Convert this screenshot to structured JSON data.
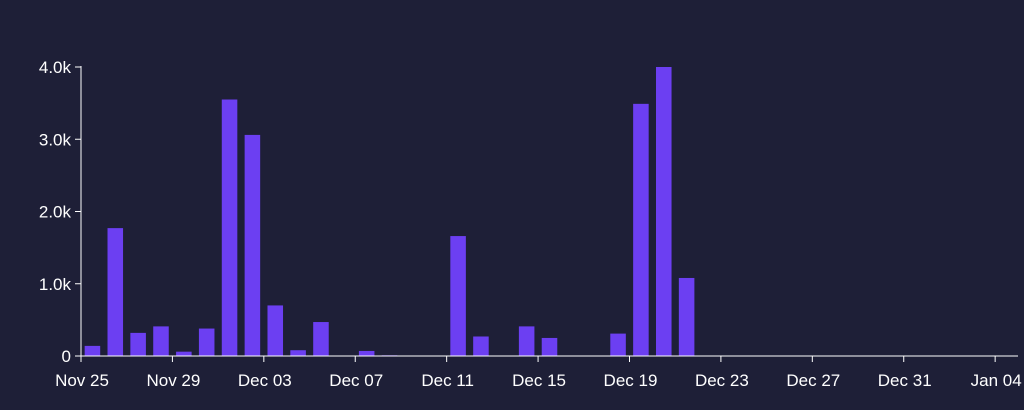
{
  "chart_data": {
    "type": "bar",
    "title": "",
    "xlabel": "",
    "ylabel": "",
    "ylim": [
      0,
      4000
    ],
    "grid": false,
    "y_ticks": [
      {
        "value": 0,
        "label": "0"
      },
      {
        "value": 1000,
        "label": "1.0k"
      },
      {
        "value": 2000,
        "label": "2.0k"
      },
      {
        "value": 3000,
        "label": "3.0k"
      },
      {
        "value": 4000,
        "label": "4.0k"
      }
    ],
    "x_ticks": [
      {
        "date": "2023-11-25",
        "label": "Nov 25"
      },
      {
        "date": "2023-11-29",
        "label": "Nov 29"
      },
      {
        "date": "2023-12-03",
        "label": "Dec 03"
      },
      {
        "date": "2023-12-07",
        "label": "Dec 07"
      },
      {
        "date": "2023-12-11",
        "label": "Dec 11"
      },
      {
        "date": "2023-12-15",
        "label": "Dec 15"
      },
      {
        "date": "2023-12-19",
        "label": "Dec 19"
      },
      {
        "date": "2023-12-23",
        "label": "Dec 23"
      },
      {
        "date": "2023-12-27",
        "label": "Dec 27"
      },
      {
        "date": "2023-12-31",
        "label": "Dec 31"
      },
      {
        "date": "2024-01-04",
        "label": "Jan 04"
      }
    ],
    "x_range": [
      "2023-11-25",
      "2024-01-05"
    ],
    "bar_color": "#6c3ff2",
    "axis_color": "#ffffff",
    "background": "#1e1f37",
    "series": [
      {
        "values": [
          {
            "date": "2023-11-25",
            "value": 140
          },
          {
            "date": "2023-11-26",
            "value": 1770
          },
          {
            "date": "2023-11-27",
            "value": 320
          },
          {
            "date": "2023-11-28",
            "value": 410
          },
          {
            "date": "2023-11-29",
            "value": 60
          },
          {
            "date": "2023-11-30",
            "value": 380
          },
          {
            "date": "2023-12-01",
            "value": 3550
          },
          {
            "date": "2023-12-02",
            "value": 3060
          },
          {
            "date": "2023-12-03",
            "value": 700
          },
          {
            "date": "2023-12-04",
            "value": 80
          },
          {
            "date": "2023-12-05",
            "value": 470
          },
          {
            "date": "2023-12-06",
            "value": 0
          },
          {
            "date": "2023-12-07",
            "value": 70
          },
          {
            "date": "2023-12-08",
            "value": 10
          },
          {
            "date": "2023-12-09",
            "value": 0
          },
          {
            "date": "2023-12-10",
            "value": 0
          },
          {
            "date": "2023-12-11",
            "value": 1660
          },
          {
            "date": "2023-12-12",
            "value": 270
          },
          {
            "date": "2023-12-13",
            "value": 0
          },
          {
            "date": "2023-12-14",
            "value": 410
          },
          {
            "date": "2023-12-15",
            "value": 250
          },
          {
            "date": "2023-12-16",
            "value": 0
          },
          {
            "date": "2023-12-17",
            "value": 0
          },
          {
            "date": "2023-12-18",
            "value": 310
          },
          {
            "date": "2023-12-19",
            "value": 3490
          },
          {
            "date": "2023-12-20",
            "value": 4000
          },
          {
            "date": "2023-12-21",
            "value": 1080
          }
        ]
      }
    ]
  }
}
